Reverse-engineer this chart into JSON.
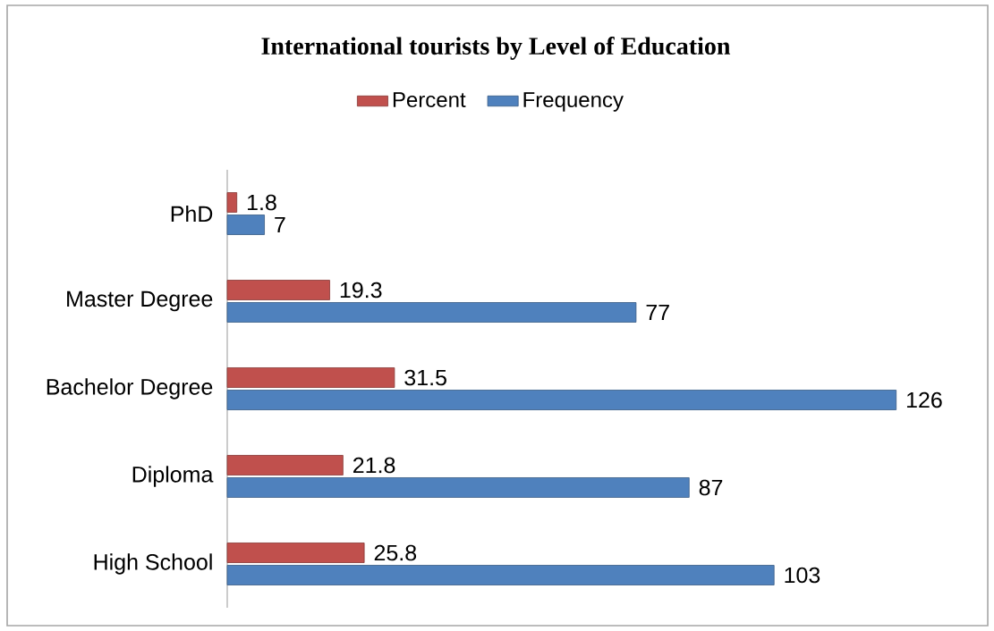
{
  "chart_data": {
    "type": "bar",
    "orientation": "horizontal",
    "title": "International tourists by Level of Education",
    "categories": [
      "PhD",
      "Master Degree",
      "Bachelor Degree",
      "Diploma",
      "High School"
    ],
    "series": [
      {
        "name": "Percent",
        "color": "#c0504d",
        "values": [
          1.8,
          19.3,
          31.5,
          21.8,
          25.8
        ]
      },
      {
        "name": "Frequency",
        "color": "#4f81bd",
        "values": [
          7,
          77,
          126,
          87,
          103
        ]
      }
    ],
    "data_labels": true,
    "legend": "top"
  }
}
